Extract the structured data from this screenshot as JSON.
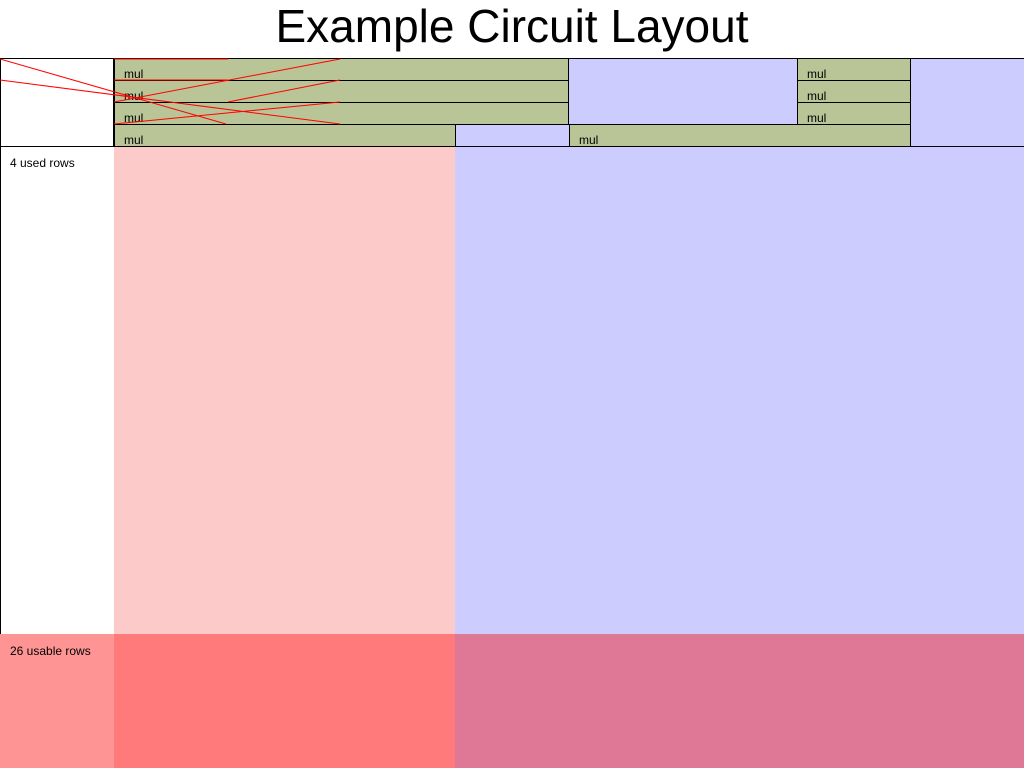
{
  "title": "Example Circuit Layout",
  "labels": {
    "used_rows": "4 used rows",
    "usable_rows": "26 usable rows"
  },
  "regions": {
    "advice_used_color": "#fdcaca",
    "instance_used_color": "#ccccff",
    "blinding_advice_color": "#ff7b7b",
    "blinding_instance_color": "#df7896",
    "blinding_label_color": "#ff9494",
    "gate_color": "#b9c497",
    "wire_color": "#ff0000"
  },
  "gates": [
    {
      "label": "mul"
    },
    {
      "label": "mul"
    },
    {
      "label": "mul"
    },
    {
      "label": "mul"
    },
    {
      "label": "mul"
    },
    {
      "label": "mul"
    },
    {
      "label": "mul"
    },
    {
      "label": "mul"
    }
  ]
}
